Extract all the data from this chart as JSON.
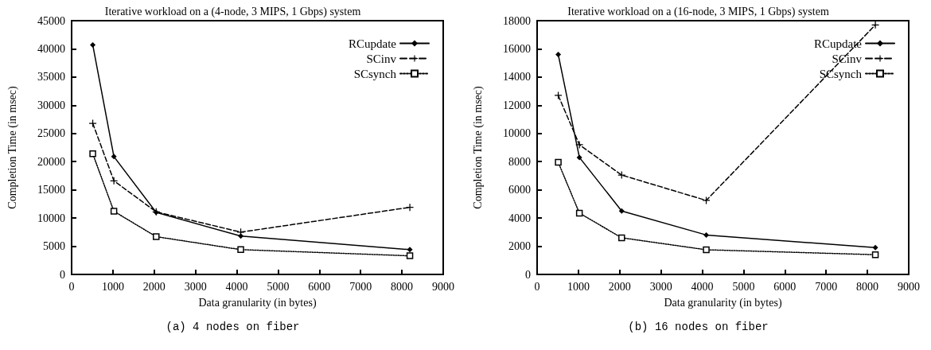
{
  "chart_data": [
    {
      "type": "line",
      "title": "Iterative workload on a (4-node, 3 MIPS, 1 Gbps) system",
      "xlabel": "Data granularity (in bytes)",
      "ylabel": "Completion Time (in msec)",
      "annotations": [
        "(a) 4 nodes on fiber"
      ],
      "x": [
        512,
        1024,
        2048,
        4096,
        8192
      ],
      "xlim": [
        0,
        9000
      ],
      "xticks": [
        0,
        1000,
        2000,
        3000,
        4000,
        5000,
        6000,
        7000,
        8000,
        9000
      ],
      "ylim": [
        0,
        45000
      ],
      "yticks": [
        0,
        5000,
        10000,
        15000,
        20000,
        25000,
        30000,
        35000,
        40000,
        45000
      ],
      "grid": false,
      "legend": "top right",
      "series": [
        {
          "name": "RCupdate",
          "color": "#000000",
          "marker": "diamond",
          "line_style": "solid",
          "values": [
            40700,
            20900,
            11000,
            6800,
            4400
          ]
        },
        {
          "name": "SCinv",
          "color": "#000000",
          "marker": "cross",
          "line_style": "dashed",
          "values": [
            26800,
            16600,
            11100,
            7500,
            11900
          ]
        },
        {
          "name": "SCsynch",
          "color": "#000000",
          "marker": "square",
          "line_style": "dotted",
          "values": [
            21400,
            11200,
            6700,
            4400,
            3300
          ]
        }
      ]
    },
    {
      "type": "line",
      "title": "Iterative workload on a (16-node, 3 MIPS, 1 Gbps) system",
      "xlabel": "Data granularity (in bytes)",
      "ylabel": "Completion Time (in msec)",
      "annotations": [
        "(b) 16 nodes on fiber"
      ],
      "x": [
        512,
        1024,
        2048,
        4096,
        8192
      ],
      "xlim": [
        0,
        9000
      ],
      "xticks": [
        0,
        1000,
        2000,
        3000,
        4000,
        5000,
        6000,
        7000,
        8000,
        9000
      ],
      "ylim": [
        0,
        18000
      ],
      "yticks": [
        0,
        2000,
        4000,
        6000,
        8000,
        10000,
        12000,
        14000,
        16000,
        18000
      ],
      "grid": false,
      "legend": "top right",
      "series": [
        {
          "name": "RCupdate",
          "color": "#000000",
          "marker": "diamond",
          "line_style": "solid",
          "values": [
            15600,
            8300,
            4500,
            2800,
            1900
          ]
        },
        {
          "name": "SCinv",
          "color": "#000000",
          "marker": "cross",
          "line_style": "dashed",
          "values": [
            12700,
            9200,
            7050,
            5250,
            17700
          ]
        },
        {
          "name": "SCsynch",
          "color": "#000000",
          "marker": "square",
          "line_style": "dotted",
          "values": [
            7950,
            4350,
            2600,
            1750,
            1400
          ]
        }
      ]
    }
  ]
}
